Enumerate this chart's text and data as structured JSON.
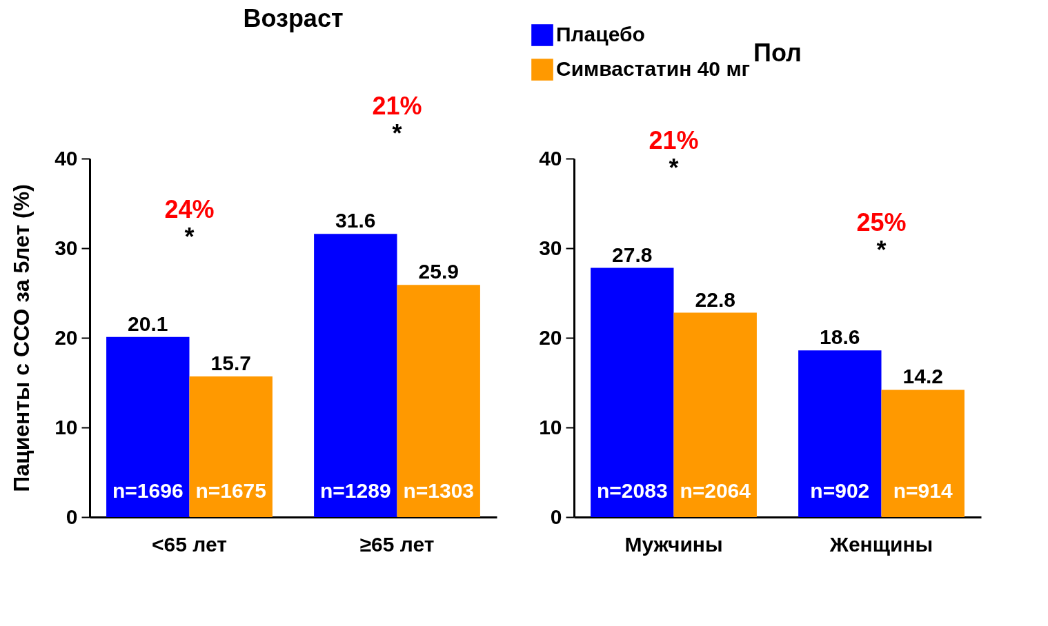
{
  "chart_data": [
    {
      "type": "bar",
      "title": "Возраст",
      "ylabel": "Пациенты с ССО за 5лет (%)",
      "categories": [
        "<65 лет",
        "≥65 лет"
      ],
      "series": [
        {
          "name": "Плацебо",
          "color": "#0000ff",
          "values": [
            20.1,
            31.6
          ]
        },
        {
          "name": "Симвастатин 40 мг",
          "color": "#ff9900",
          "values": [
            15.7,
            25.9
          ]
        }
      ],
      "ylim": [
        0,
        40
      ],
      "yticks": [
        0,
        10,
        20,
        30,
        40
      ],
      "data_labels": true,
      "legend": "top",
      "grid": false,
      "annotations": [
        "24%",
        "*",
        "21%",
        "*",
        "n=1696",
        "n=1675",
        "n=1289",
        "n=1303"
      ]
    },
    {
      "type": "bar",
      "title": "Пол",
      "categories": [
        "Мужчины",
        "Женщины"
      ],
      "series": [
        {
          "name": "Плацебо",
          "color": "#0000ff",
          "values": [
            27.8,
            18.6
          ]
        },
        {
          "name": "Симвастатин 40 мг",
          "color": "#ff9900",
          "values": [
            22.8,
            14.2
          ]
        }
      ],
      "ylim": [
        0,
        40
      ],
      "yticks": [
        0,
        10,
        20,
        30,
        40
      ],
      "data_labels": true,
      "grid": false,
      "annotations": [
        "21%",
        "*",
        "25%",
        "*",
        "n=2083",
        "n=2064",
        "n=902",
        "n=914"
      ]
    }
  ]
}
